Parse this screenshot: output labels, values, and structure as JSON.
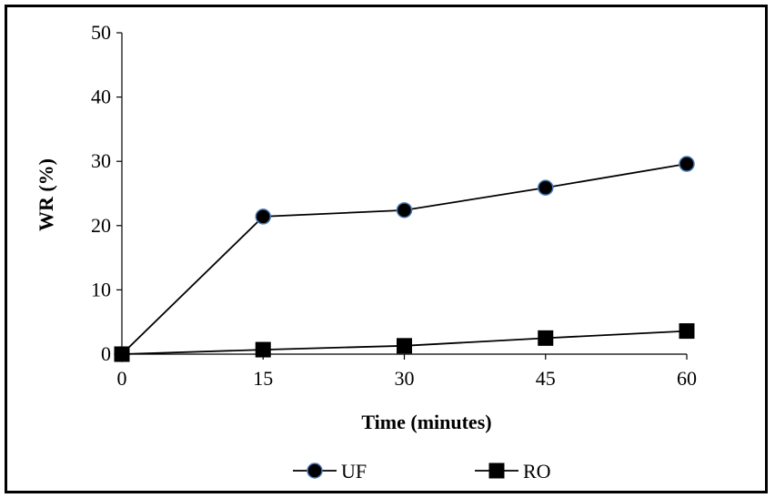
{
  "chart_data": {
    "type": "line",
    "title": "",
    "xlabel": "Time (minutes)",
    "ylabel": "WR (%)",
    "x": [
      0,
      15,
      30,
      45,
      60
    ],
    "xticks": [
      "0",
      "15",
      "30",
      "45",
      "60"
    ],
    "yticks": [
      "0",
      "10",
      "20",
      "30",
      "40",
      "50"
    ],
    "xlim": [
      0,
      60
    ],
    "ylim": [
      0,
      50
    ],
    "grid": false,
    "legend_position": "bottom",
    "series": [
      {
        "name": "UF",
        "marker": "circle",
        "values": [
          0,
          21.4,
          22.4,
          25.9,
          29.6
        ],
        "color": "#000000",
        "marker_edge": "#4a7ab8"
      },
      {
        "name": "RO",
        "marker": "square",
        "values": [
          0,
          0.7,
          1.3,
          2.5,
          3.6
        ],
        "color": "#000000"
      }
    ]
  }
}
